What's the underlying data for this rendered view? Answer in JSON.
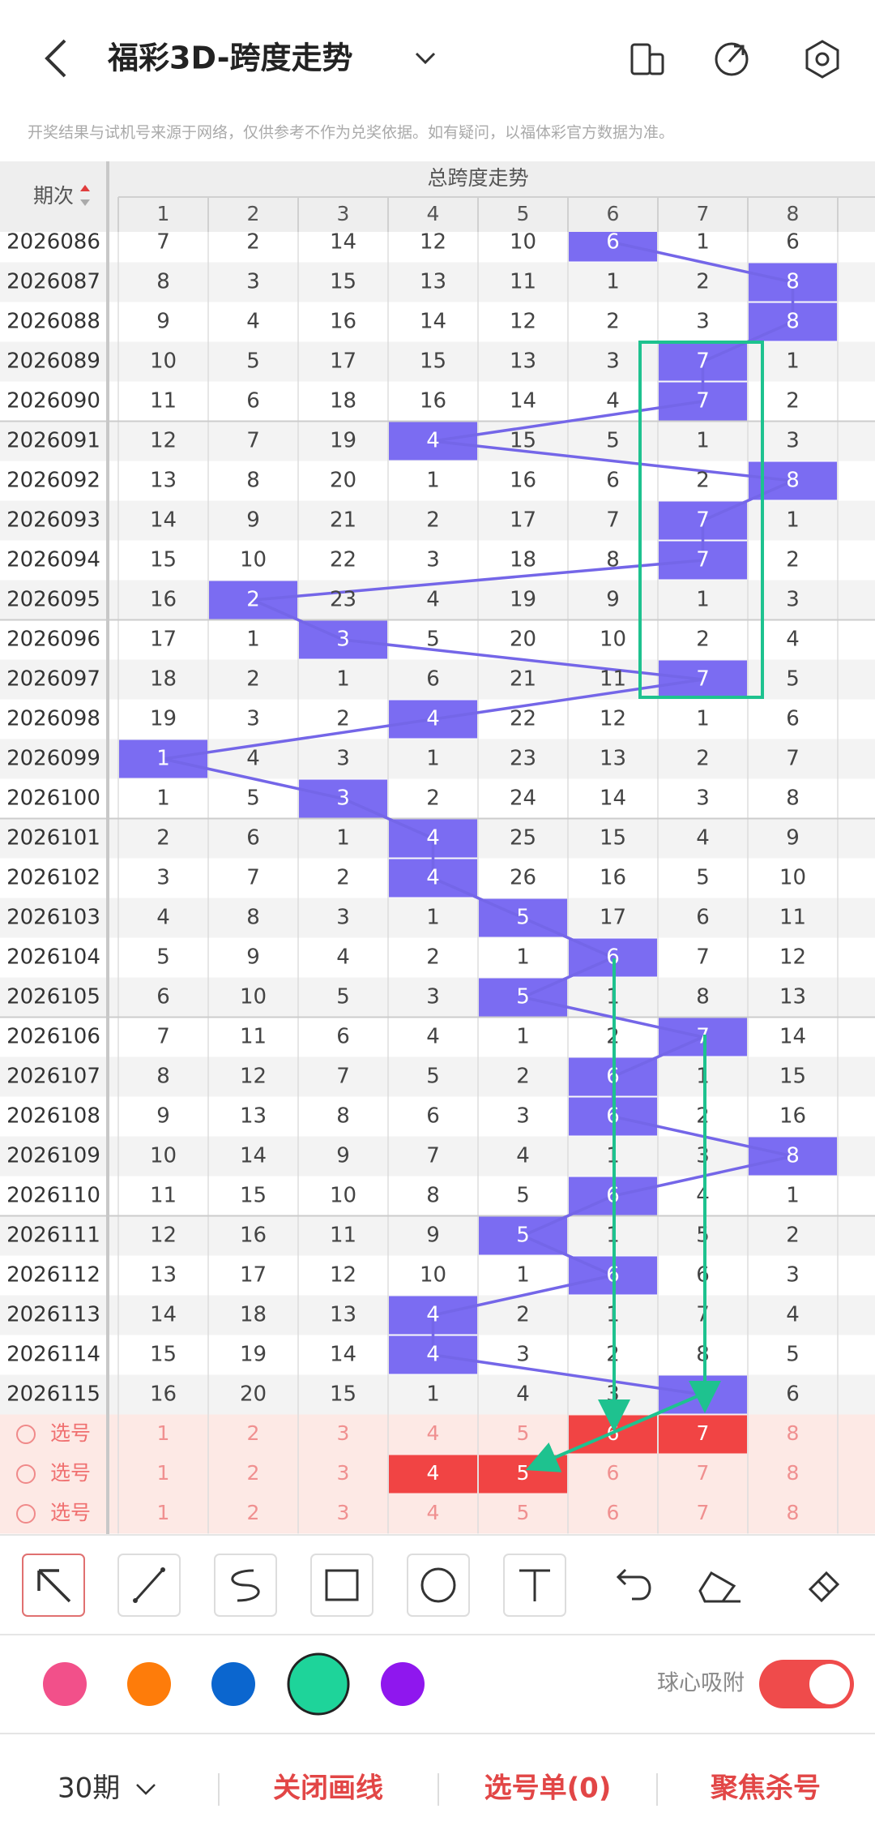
{
  "header": {
    "title": "福彩3D-跨度走势",
    "notice": "开奖结果与试机号来源于网络，仅供参考不作为兑奖依据。如有疑问，以福体彩官方数据为准。"
  },
  "table": {
    "period_header": "期次",
    "group_header": "总跨度走势",
    "columns": [
      "1",
      "2",
      "3",
      "4",
      "5",
      "6",
      "7",
      "8"
    ],
    "rows": [
      {
        "period": "2026086",
        "cells": [
          7,
          2,
          14,
          12,
          10,
          6,
          1,
          6
        ],
        "hit": 5
      },
      {
        "period": "2026087",
        "cells": [
          8,
          3,
          15,
          13,
          11,
          1,
          2,
          8
        ],
        "hit": 7
      },
      {
        "period": "2026088",
        "cells": [
          9,
          4,
          16,
          14,
          12,
          2,
          3,
          8
        ],
        "hit": 7
      },
      {
        "period": "2026089",
        "cells": [
          10,
          5,
          17,
          15,
          13,
          3,
          7,
          1
        ],
        "hit": 6
      },
      {
        "period": "2026090",
        "cells": [
          11,
          6,
          18,
          16,
          14,
          4,
          7,
          2
        ],
        "hit": 6
      },
      {
        "period": "2026091",
        "cells": [
          12,
          7,
          19,
          4,
          15,
          5,
          1,
          3
        ],
        "hit": 3
      },
      {
        "period": "2026092",
        "cells": [
          13,
          8,
          20,
          1,
          16,
          6,
          2,
          8
        ],
        "hit": 7
      },
      {
        "period": "2026093",
        "cells": [
          14,
          9,
          21,
          2,
          17,
          7,
          7,
          1
        ],
        "hit": 6
      },
      {
        "period": "2026094",
        "cells": [
          15,
          10,
          22,
          3,
          18,
          8,
          7,
          2
        ],
        "hit": 6
      },
      {
        "period": "2026095",
        "cells": [
          16,
          2,
          23,
          4,
          19,
          9,
          1,
          3
        ],
        "hit": 1
      },
      {
        "period": "2026096",
        "cells": [
          17,
          1,
          3,
          5,
          20,
          10,
          2,
          4
        ],
        "hit": 2
      },
      {
        "period": "2026097",
        "cells": [
          18,
          2,
          1,
          6,
          21,
          11,
          7,
          5
        ],
        "hit": 6
      },
      {
        "period": "2026098",
        "cells": [
          19,
          3,
          2,
          4,
          22,
          12,
          1,
          6
        ],
        "hit": 3
      },
      {
        "period": "2026099",
        "cells": [
          1,
          4,
          3,
          1,
          23,
          13,
          2,
          7
        ],
        "hit": 0
      },
      {
        "period": "2026100",
        "cells": [
          1,
          5,
          3,
          2,
          24,
          14,
          3,
          8
        ],
        "hit": 2
      },
      {
        "period": "2026101",
        "cells": [
          2,
          6,
          1,
          4,
          25,
          15,
          4,
          9
        ],
        "hit": 3
      },
      {
        "period": "2026102",
        "cells": [
          3,
          7,
          2,
          4,
          26,
          16,
          5,
          10
        ],
        "hit": 3
      },
      {
        "period": "2026103",
        "cells": [
          4,
          8,
          3,
          1,
          5,
          17,
          6,
          11
        ],
        "hit": 4
      },
      {
        "period": "2026104",
        "cells": [
          5,
          9,
          4,
          2,
          1,
          6,
          7,
          12
        ],
        "hit": 5
      },
      {
        "period": "2026105",
        "cells": [
          6,
          10,
          5,
          3,
          5,
          1,
          8,
          13
        ],
        "hit": 4
      },
      {
        "period": "2026106",
        "cells": [
          7,
          11,
          6,
          4,
          1,
          2,
          7,
          14
        ],
        "hit": 6
      },
      {
        "period": "2026107",
        "cells": [
          8,
          12,
          7,
          5,
          2,
          6,
          1,
          15
        ],
        "hit": 5
      },
      {
        "period": "2026108",
        "cells": [
          9,
          13,
          8,
          6,
          3,
          6,
          2,
          16
        ],
        "hit": 5
      },
      {
        "period": "2026109",
        "cells": [
          10,
          14,
          9,
          7,
          4,
          1,
          3,
          8
        ],
        "hit": 7
      },
      {
        "period": "2026110",
        "cells": [
          11,
          15,
          10,
          8,
          5,
          6,
          4,
          1
        ],
        "hit": 5
      },
      {
        "period": "2026111",
        "cells": [
          12,
          16,
          11,
          9,
          5,
          1,
          5,
          2
        ],
        "hit": 4
      },
      {
        "period": "2026112",
        "cells": [
          13,
          17,
          12,
          10,
          1,
          6,
          6,
          3
        ],
        "hit": 5
      },
      {
        "period": "2026113",
        "cells": [
          14,
          18,
          13,
          4,
          2,
          1,
          7,
          4
        ],
        "hit": 3
      },
      {
        "period": "2026114",
        "cells": [
          15,
          19,
          14,
          4,
          3,
          2,
          8,
          5
        ],
        "hit": 3
      },
      {
        "period": "2026115",
        "cells": [
          16,
          20,
          15,
          1,
          4,
          3,
          7,
          6
        ],
        "hit": 6
      }
    ],
    "select_rows": [
      {
        "label": "选号",
        "cells": [
          1,
          2,
          3,
          4,
          5,
          6,
          7,
          8
        ],
        "selected": [
          5,
          6
        ]
      },
      {
        "label": "选号",
        "cells": [
          1,
          2,
          3,
          4,
          5,
          6,
          7,
          8
        ],
        "selected": [
          3,
          4
        ]
      },
      {
        "label": "选号",
        "cells": [
          1,
          2,
          3,
          4,
          5,
          6,
          7,
          8
        ],
        "selected": []
      }
    ]
  },
  "tools": {
    "snap_label": "球心吸附"
  },
  "footer": {
    "period_filter": "30期",
    "close_lines": "关闭画线",
    "selection": "选号单(0)",
    "focus_kill": "聚焦杀号"
  }
}
